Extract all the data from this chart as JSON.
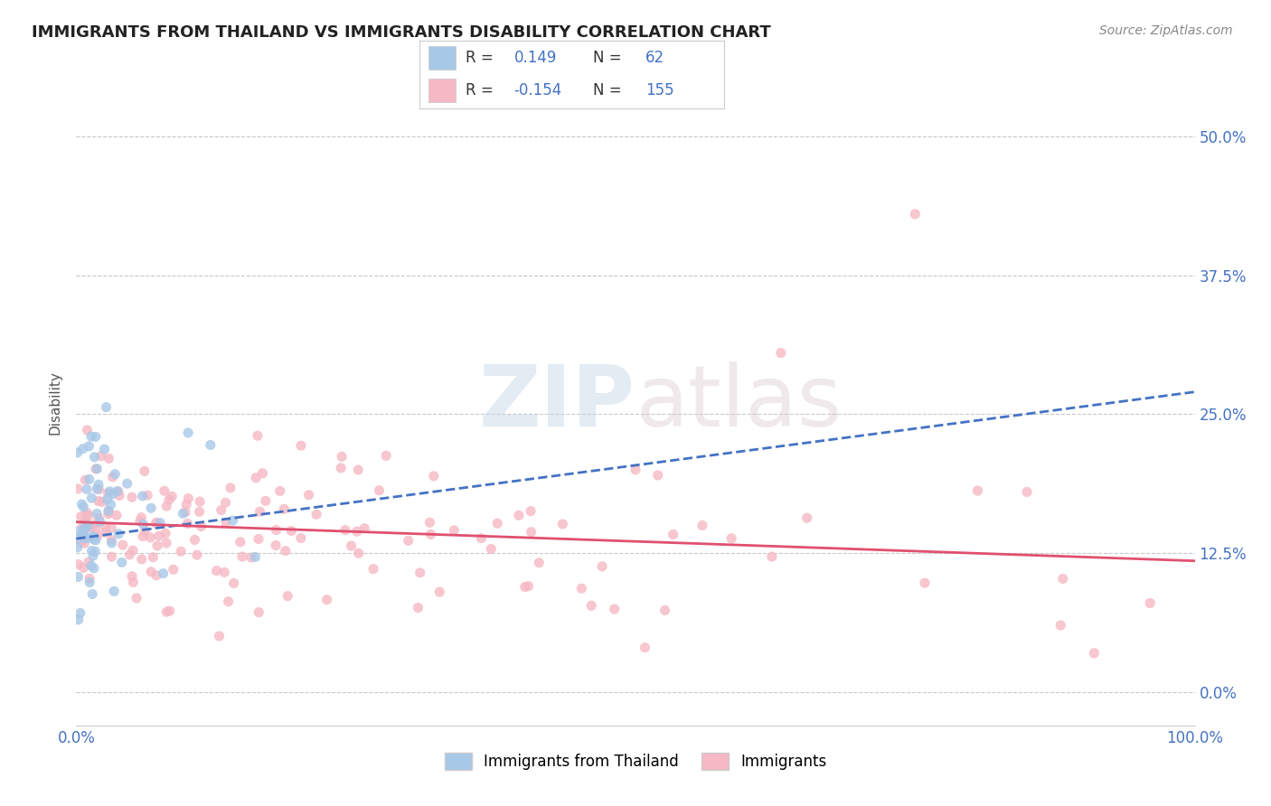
{
  "title": "IMMIGRANTS FROM THAILAND VS IMMIGRANTS DISABILITY CORRELATION CHART",
  "source": "Source: ZipAtlas.com",
  "ylabel": "Disability",
  "r_blue": 0.149,
  "n_blue": 62,
  "r_pink": -0.154,
  "n_pink": 155,
  "legend_label_blue": "Immigrants from Thailand",
  "legend_label_pink": "Immigrants",
  "xlim": [
    0.0,
    1.0
  ],
  "ylim": [
    -0.03,
    0.55
  ],
  "yticks": [
    0.0,
    0.125,
    0.25,
    0.375,
    0.5
  ],
  "ytick_labels": [
    "0.0%",
    "12.5%",
    "25.0%",
    "37.5%",
    "50.0%"
  ],
  "xticks": [
    0.0,
    1.0
  ],
  "xtick_labels": [
    "0.0%",
    "100.0%"
  ],
  "watermark_zip": "ZIP",
  "watermark_atlas": "atlas",
  "blue_scatter_color": "#a8c8e8",
  "pink_scatter_color": "#f5b8c4",
  "blue_line_color": "#4472c4",
  "pink_line_color": "#e05070",
  "grid_color": "#c8c8c8",
  "title_color": "#222222",
  "axis_label_color": "#555555",
  "tick_color": "#4472c4",
  "background_color": "#ffffff",
  "seed": 7,
  "blue_trend_start_y": 0.138,
  "blue_trend_end_y": 0.27,
  "pink_trend_start_y": 0.153,
  "pink_trend_end_y": 0.118
}
